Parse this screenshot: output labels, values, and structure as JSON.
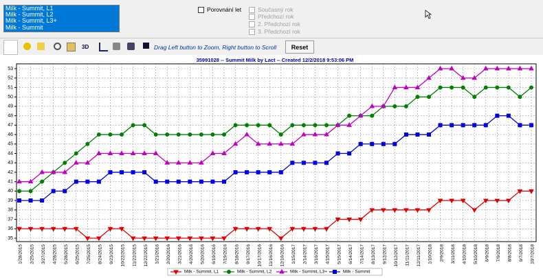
{
  "list_items": [
    "Milk - Summit, L1",
    "Milk - Summit, L2",
    "Milk - Summit, L3+",
    "Milk - Summit"
  ],
  "compare_checkbox": "Porovnání let",
  "year_checkboxes": [
    "Současný rok",
    "Předchozí rok",
    "2. Předchozí rok",
    "3. Předchozí rok"
  ],
  "toolbar": {
    "label_3d": "3D",
    "hint": "Drag Left button to Zoom, Right button to Scroll",
    "reset": "Reset"
  },
  "chart_data": {
    "type": "line",
    "title": "35991028 -- Summit Milk by Lact -- Created 12/2/2018 9:53:06 PM",
    "categories": [
      "1/28/2015",
      "2/25/2015",
      "3/27/2015",
      "4/28/2015",
      "5/28/2015",
      "6/25/2015",
      "7/25/2015",
      "8/24/2015",
      "9/23/2015",
      "10/22/2015",
      "11/22/2015",
      "12/22/2015",
      "1/21/2016",
      "2/20/2016",
      "3/21/2016",
      "4/20/2016",
      "5/20/2016",
      "6/19/2016",
      "7/19/2016",
      "8/18/2016",
      "9/17/2016",
      "10/17/2016",
      "11/16/2016",
      "12/16/2016",
      "1/15/2017",
      "2/14/2017",
      "3/16/2017",
      "4/15/2017",
      "5/15/2017",
      "6/14/2017",
      "7/14/2017",
      "8/13/2017",
      "9/12/2017",
      "10/12/2017",
      "11/11/2017",
      "12/11/2017",
      "1/10/2018",
      "2/9/2018",
      "3/11/2018",
      "4/10/2018",
      "5/10/2018",
      "6/9/2018",
      "7/9/2018",
      "8/8/2018",
      "9/7/2018",
      "10/7/2018"
    ],
    "series": [
      {
        "name": "Milk - Summit, L1",
        "color": "#e00000",
        "marker": "triangle-down",
        "values": [
          36,
          36,
          36,
          36,
          36,
          36,
          35,
          35,
          36,
          36,
          35,
          35,
          35,
          35,
          35,
          35,
          35,
          35,
          35,
          36,
          36,
          36,
          36,
          35,
          36,
          36,
          36,
          36,
          37,
          37,
          37,
          38,
          38,
          38,
          38,
          38,
          38,
          39,
          39,
          39,
          38,
          39,
          39,
          39,
          40,
          40
        ]
      },
      {
        "name": "Milk - Summit, L2",
        "color": "#008000",
        "marker": "circle",
        "values": [
          40,
          40,
          41,
          42,
          43,
          44,
          45,
          46,
          46,
          46,
          47,
          47,
          46,
          46,
          46,
          46,
          46,
          46,
          46,
          47,
          47,
          47,
          47,
          46,
          47,
          47,
          47,
          47,
          47,
          48,
          48,
          48,
          49,
          49,
          49,
          50,
          50,
          51,
          51,
          51,
          50,
          51,
          51,
          51,
          50,
          51
        ]
      },
      {
        "name": "Milk - Summit, L3+",
        "color": "#c000c0",
        "marker": "triangle-up",
        "values": [
          41,
          41,
          42,
          42,
          42,
          43,
          43,
          44,
          44,
          44,
          44,
          44,
          44,
          43,
          43,
          43,
          43,
          44,
          44,
          45,
          46,
          45,
          45,
          45,
          45,
          46,
          46,
          46,
          47,
          47,
          48,
          49,
          49,
          51,
          51,
          51,
          52,
          53,
          53,
          52,
          52,
          53,
          53,
          53,
          53,
          53
        ]
      },
      {
        "name": "Milk - Summit",
        "color": "#0000e0",
        "marker": "square",
        "values": [
          39,
          39,
          39,
          40,
          40,
          41,
          41,
          41,
          42,
          42,
          42,
          42,
          41,
          41,
          41,
          41,
          41,
          41,
          41,
          42,
          42,
          42,
          42,
          42,
          43,
          43,
          43,
          43,
          44,
          44,
          45,
          45,
          45,
          45,
          46,
          46,
          46,
          47,
          47,
          47,
          47,
          47,
          48,
          48,
          47,
          47
        ]
      }
    ],
    "ylim": [
      35,
      53
    ],
    "yticks": [
      35,
      36,
      37,
      38,
      39,
      40,
      41,
      42,
      43,
      44,
      45,
      46,
      47,
      48,
      49,
      50,
      51,
      52,
      53
    ],
    "grid": true,
    "legend": "bottom"
  }
}
